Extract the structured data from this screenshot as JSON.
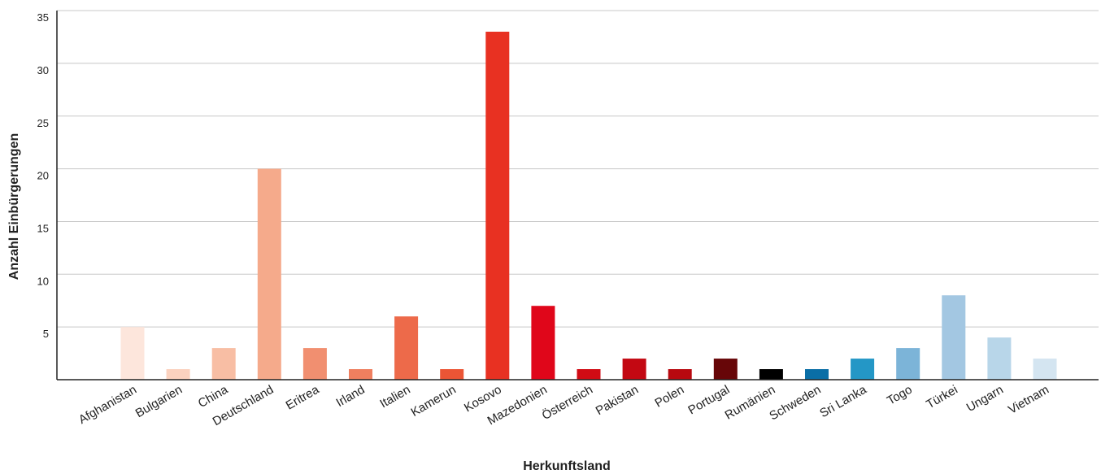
{
  "chart_data": {
    "type": "bar",
    "title": "",
    "xlabel": "Herkunftsland",
    "ylabel": "Anzahl Einbürgerungen",
    "ylim": [
      0,
      35
    ],
    "yticks": [
      5,
      10,
      15,
      20,
      25,
      30,
      35
    ],
    "grid": true,
    "legend": "none",
    "categories": [
      "Afghanistan",
      "Bulgarien",
      "China",
      "Deutschland",
      "Eritrea",
      "Irland",
      "Italien",
      "Kamerun",
      "Kosovo",
      "Mazedonien",
      "Österreich",
      "Pakistan",
      "Polen",
      "Portugal",
      "Rumänien",
      "Schweden",
      "Sri Lanka",
      "Togo",
      "Türkei",
      "Ungarn",
      "Vietnam"
    ],
    "values": [
      5,
      1,
      3,
      20,
      3,
      1,
      6,
      1,
      33,
      7,
      1,
      2,
      1,
      2,
      1,
      1,
      2,
      3,
      8,
      4,
      2
    ],
    "colors": [
      "#fde6dc",
      "#fbd2bf",
      "#f8bea4",
      "#f5aa8b",
      "#f18f70",
      "#ef7f5f",
      "#ed6a4a",
      "#eb5535",
      "#e83122",
      "#e0061a",
      "#d10b14",
      "#c30812",
      "#b8090f",
      "#670608",
      "#000000",
      "#0a6ea6",
      "#2497c6",
      "#7cb4d8",
      "#a3c7e2",
      "#b8d6e9",
      "#d4e5f1"
    ]
  }
}
